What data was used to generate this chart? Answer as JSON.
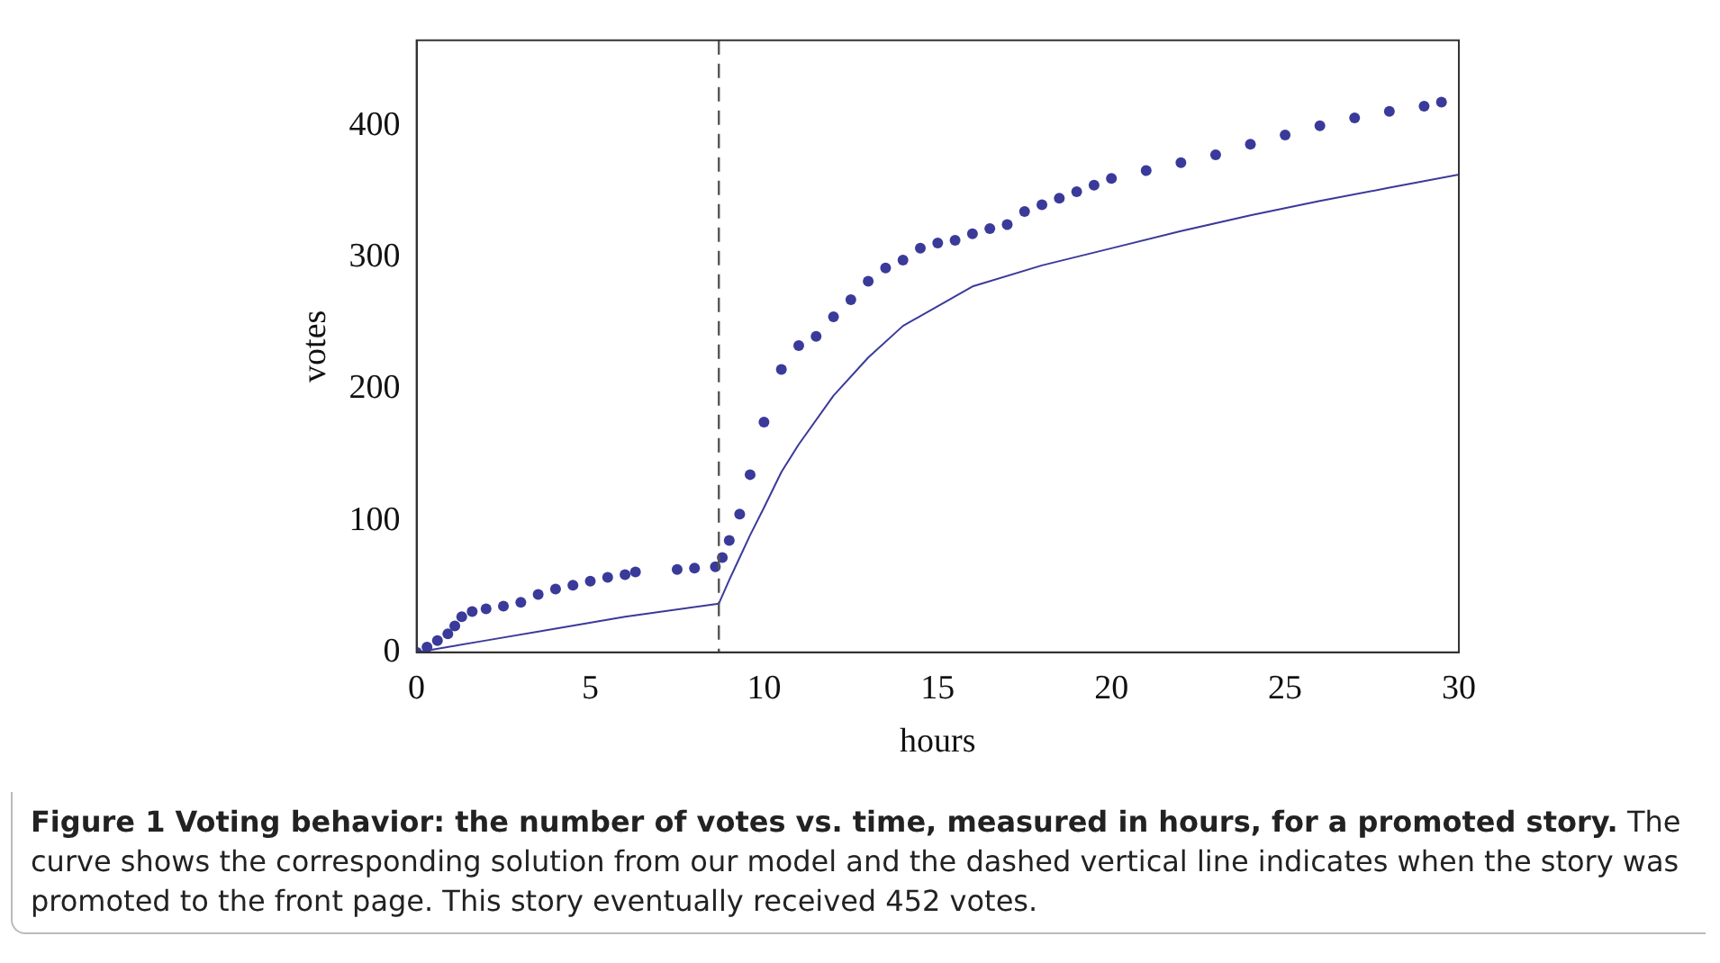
{
  "chart_data": {
    "type": "scatter",
    "title": "Figure 1  Voting behavior: the number of votes vs. time, measured in hours, for a promoted story.",
    "annotations": [
      "The curve shows the corresponding solution from our model and the dashed vertical line indicates when the story was promoted to the front page. This story eventually received 452 votes."
    ],
    "xlabel": "hours",
    "ylabel": "votes",
    "xlim": [
      0,
      30
    ],
    "xticks": [
      0,
      5,
      10,
      15,
      20,
      25,
      30
    ],
    "ylim": [
      0,
      465
    ],
    "yticks": [
      0,
      100,
      200,
      300,
      400
    ],
    "grid": false,
    "legend": false,
    "ref_lines": [
      {
        "axis": "x",
        "value": 8.7,
        "color": "#555555",
        "line_style": "dashed"
      }
    ],
    "series": [
      {
        "type": "scatter",
        "color": "#3a3a9a",
        "marker": "circle",
        "x": [
          0,
          0.3,
          0.6,
          0.9,
          1.1,
          1.3,
          1.6,
          2,
          2.5,
          3,
          3.5,
          4,
          4.5,
          5,
          5.5,
          6,
          6.3,
          7.5,
          8,
          8.6,
          8.8,
          9,
          9.3,
          9.6,
          10,
          10.5,
          11,
          11.5,
          12,
          12.5,
          13,
          13.5,
          14,
          14.5,
          15,
          15.5,
          16,
          16.5,
          17,
          17.5,
          18,
          18.5,
          19,
          19.5,
          20,
          21,
          22,
          23,
          24,
          25,
          26,
          27,
          28,
          29,
          29.5
        ],
        "values": [
          0,
          4,
          9,
          14,
          20,
          27,
          31,
          33,
          35,
          38,
          44,
          48,
          51,
          54,
          57,
          59,
          61,
          63,
          64,
          65,
          72,
          85,
          105,
          135,
          175,
          215,
          233,
          240,
          255,
          268,
          282,
          292,
          298,
          307,
          311,
          313,
          318,
          322,
          325,
          335,
          340,
          345,
          350,
          355,
          360,
          366,
          372,
          378,
          386,
          393,
          400,
          406,
          411,
          415,
          418
        ]
      },
      {
        "type": "line",
        "color": "#3a3a9a",
        "marker": "none",
        "line_style": "solid",
        "x": [
          0,
          2,
          4,
          6,
          8.7,
          9,
          9.3,
          9.6,
          10,
          10.5,
          11,
          12,
          13,
          14,
          16,
          18,
          20,
          22,
          24,
          26,
          28,
          30
        ],
        "values": [
          0,
          9,
          18,
          27,
          37,
          55,
          72,
          89,
          110,
          137,
          158,
          195,
          224,
          248,
          278,
          294,
          307,
          320,
          332,
          343,
          353,
          363
        ]
      }
    ]
  }
}
